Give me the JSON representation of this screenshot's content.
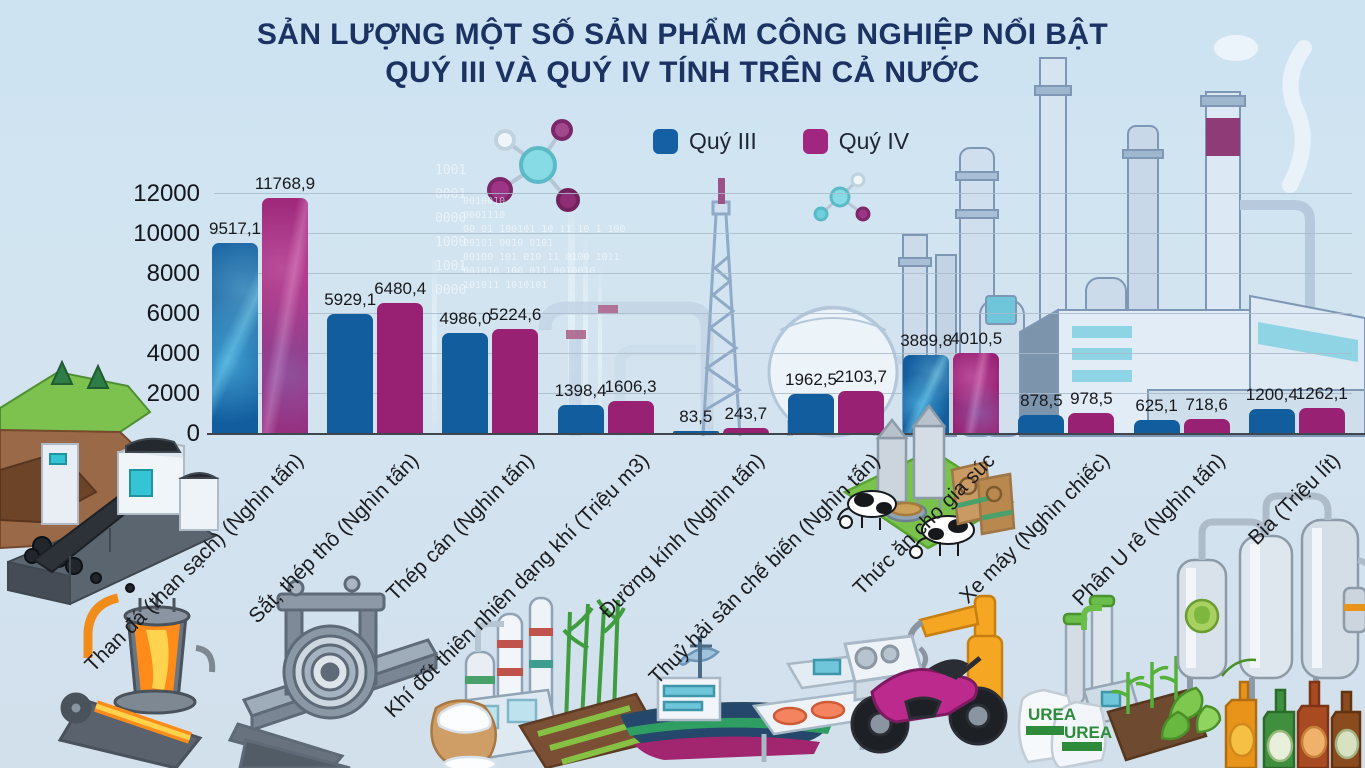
{
  "title": {
    "line1": "SẢN LƯỢNG MỘT SỐ SẢN PHẨM CÔNG NGHIỆP NỔI BẬT",
    "line2": "QUÝ III VÀ QUÝ IV TÍNH TRÊN CẢ NƯỚC"
  },
  "legend": [
    {
      "label": "Quý III",
      "color": "#1560a5"
    },
    {
      "label": "Quý IV",
      "color": "#a1267f"
    }
  ],
  "colors": {
    "q3_bar": "#125d9e",
    "q4_bar": "#992174",
    "title_text": "#1b3262",
    "grid_line": "#a9bac9",
    "axis_line": "#3f4650",
    "background_top": "#cde3f2",
    "background_bottom": "#d2e0ec"
  },
  "y_axis": {
    "ticks": [
      0,
      2000,
      4000,
      6000,
      8000,
      10000,
      12000
    ],
    "max": 12000
  },
  "chart_data": {
    "type": "bar",
    "title": "SẢN LƯỢNG MỘT SỐ SẢN PHẨM CÔNG NGHIỆP NỔI BẬT QUÝ III VÀ QUÝ IV TÍNH TRÊN CẢ NƯỚC",
    "categories": [
      "Than đá (than sạch) (Nghìn tấn)",
      "Sắt, thép thô (Nghìn tấn)",
      "Thép cán (Nghìn tấn)",
      "Khí đốt thiên nhiên dạng khí (Triệu m3)",
      "Đường kính (Nghìn tấn)",
      "Thuỷ hải sản chế biến (Nghìn tấn)",
      "Thức ăn cho gia súc",
      "Xe máy (Nghìn chiếc)",
      "Phân U rê (Nghìn tấn)",
      "Bia (Triệu lít)"
    ],
    "series": [
      {
        "name": "Quý III",
        "color": "#125d9e",
        "values": [
          9517.1,
          5929.1,
          4986.0,
          1398.4,
          83.5,
          1962.5,
          3889.8,
          878.5,
          625.1,
          1200.4
        ],
        "labels": [
          "9517,1",
          "5929,1",
          "4986,0",
          "1398,4",
          "83,5",
          "1962,5",
          "3889,8",
          "878,5",
          "625,1",
          "1200,4"
        ]
      },
      {
        "name": "Quý IV",
        "color": "#992174",
        "values": [
          11768.9,
          6480.4,
          5224.6,
          1606.3,
          243.7,
          2103.7,
          4010.5,
          978.5,
          718.6,
          1262.1
        ],
        "labels": [
          "11768,9",
          "6480,4",
          "5224,6",
          "1606,3",
          "243,7",
          "2103,7",
          "4010,5",
          "978,5",
          "718,6",
          "1262,1"
        ]
      }
    ],
    "ylim": [
      0,
      12000
    ],
    "grid": true,
    "legend_position": "top-center"
  },
  "decor": {
    "urea_label": "UREA",
    "binary_column": [
      "1001",
      "0001",
      "0000",
      "1000",
      "1001",
      "0000"
    ],
    "binary_rows": [
      "0010010",
      "0001110",
      "00 01 100101 10 11 10 1 100",
      "00101 0010 0101",
      "00100 101 010 11 0100 1011",
      "001010 100 011 0010010",
      "101011 1010101"
    ],
    "icons": [
      "coal-mine-icon",
      "furnace-icon",
      "steel-coil-icon",
      "sugar-plant-icon",
      "fishing-boat-icon",
      "fish-icon",
      "cattle-feed-icon",
      "motorcycle-icon",
      "robot-arm-icon",
      "urea-bags-icon",
      "beer-tanks-icon",
      "beer-bottles-icon",
      "factory-icon",
      "gas-sphere-icon",
      "derrick-icon",
      "molecule-icon"
    ]
  }
}
